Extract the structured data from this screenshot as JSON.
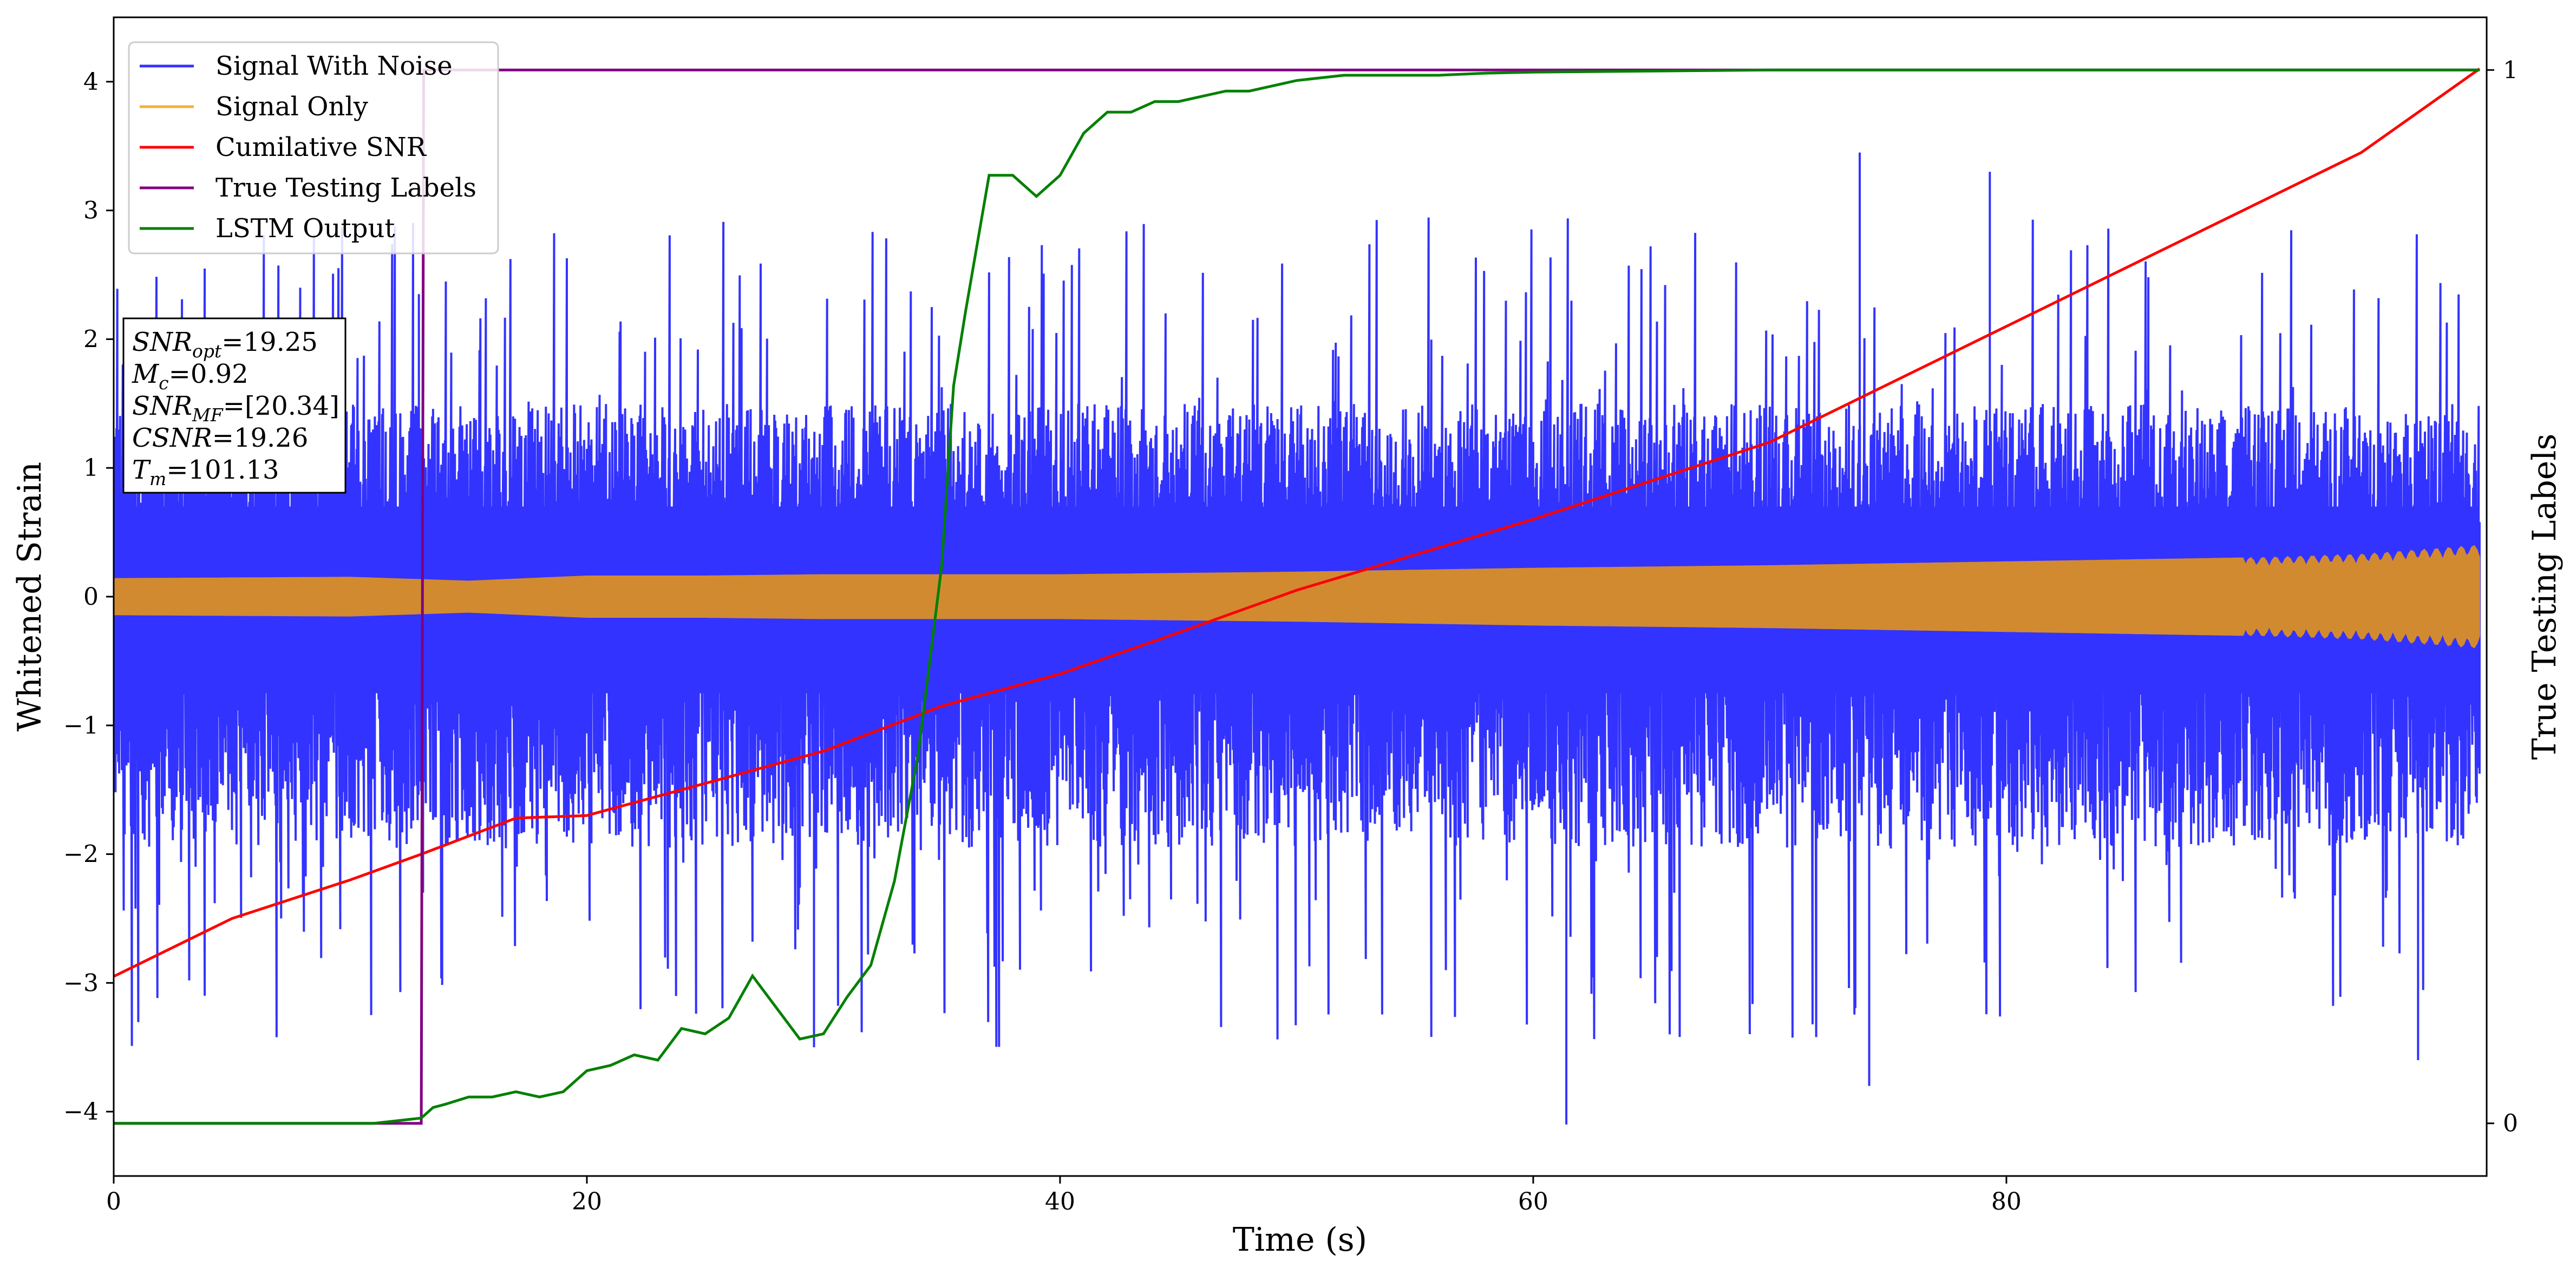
{
  "chart_data": {
    "type": "line",
    "xlabel": "Time (s)",
    "ylabel": "Whitened Strain",
    "y2label": "True Testing Labels",
    "xlim": [
      0,
      100
    ],
    "ylim": [
      -4.5,
      4.5
    ],
    "y2lim": [
      -0.05,
      1.05
    ],
    "x_ticks": [
      0,
      20,
      40,
      60,
      80
    ],
    "y_ticks": [
      -4,
      -3,
      -2,
      -1,
      0,
      1,
      2,
      3,
      4
    ],
    "y2_ticks": [
      0,
      1
    ],
    "grid": false,
    "legend_position": "top-left",
    "legend": [
      {
        "name": "Signal With Noise",
        "color": "#3333ff"
      },
      {
        "name": "Signal Only",
        "color": "#f5b030"
      },
      {
        "name": "Cumilative SNR",
        "color": "#ff0000"
      },
      {
        "name": "True Testing Labels",
        "color": "#800080"
      },
      {
        "name": "LSTM Output",
        "color": "#008000"
      }
    ],
    "annotation": {
      "lines": [
        {
          "var": "SNR",
          "sub": "opt",
          "value": "=19.25"
        },
        {
          "var": "M",
          "sub": "c",
          "value": "=0.92"
        },
        {
          "var": "SNR",
          "sub": "MF",
          "value": "=[20.34]"
        },
        {
          "var": "CSNR",
          "sub": "",
          "value": "=19.26"
        },
        {
          "var": "T",
          "sub": "m",
          "value": "=101.13"
        }
      ]
    },
    "signal_with_noise": {
      "envelope_positive_typical": 1.0,
      "envelope_negative_typical": -1.3,
      "peak_max": 3.45,
      "peak_min": -4.1,
      "x_range": [
        0,
        100
      ]
    },
    "signal_only": {
      "x": [
        0,
        10,
        15,
        20,
        25,
        30,
        40,
        50,
        60,
        70,
        80,
        90,
        95,
        100
      ],
      "amplitude": [
        0.14,
        0.15,
        0.12,
        0.16,
        0.16,
        0.17,
        0.17,
        0.19,
        0.22,
        0.24,
        0.27,
        0.3,
        0.33,
        0.4
      ]
    },
    "cumulative_snr": {
      "x": [
        0,
        5,
        10,
        13,
        17,
        20,
        25,
        30,
        35,
        40,
        45,
        50,
        60,
        70,
        80,
        90,
        95,
        100
      ],
      "y": [
        -2.95,
        -2.5,
        -2.2,
        -2.0,
        -1.72,
        -1.7,
        -1.45,
        -1.2,
        -0.85,
        -0.6,
        -0.28,
        0.05,
        0.6,
        1.2,
        2.1,
        3.0,
        3.45,
        4.1
      ]
    },
    "true_testing_labels": {
      "x": [
        0,
        13,
        13.1,
        100
      ],
      "y": [
        0,
        0,
        1,
        1
      ]
    },
    "lstm_output": {
      "x": [
        0,
        11,
        13,
        13.5,
        14,
        15,
        16,
        17,
        18,
        19,
        20,
        21,
        22,
        23,
        24,
        25,
        26,
        27,
        28,
        29,
        30,
        31,
        32,
        33,
        34,
        35,
        35.5,
        36,
        37,
        38,
        39,
        40,
        41,
        42,
        43,
        44,
        45,
        46,
        47,
        48,
        50,
        52,
        54,
        56,
        58,
        60,
        65,
        70,
        75,
        80,
        100
      ],
      "y": [
        0,
        0,
        0.005,
        0.015,
        0.018,
        0.025,
        0.025,
        0.03,
        0.025,
        0.03,
        0.05,
        0.055,
        0.065,
        0.06,
        0.09,
        0.085,
        0.1,
        0.14,
        0.11,
        0.08,
        0.085,
        0.12,
        0.15,
        0.23,
        0.35,
        0.53,
        0.7,
        0.77,
        0.9,
        0.9,
        0.88,
        0.9,
        0.94,
        0.96,
        0.96,
        0.97,
        0.97,
        0.975,
        0.98,
        0.98,
        0.99,
        0.995,
        0.995,
        0.995,
        0.997,
        0.998,
        0.999,
        1,
        1,
        1,
        1
      ]
    }
  }
}
